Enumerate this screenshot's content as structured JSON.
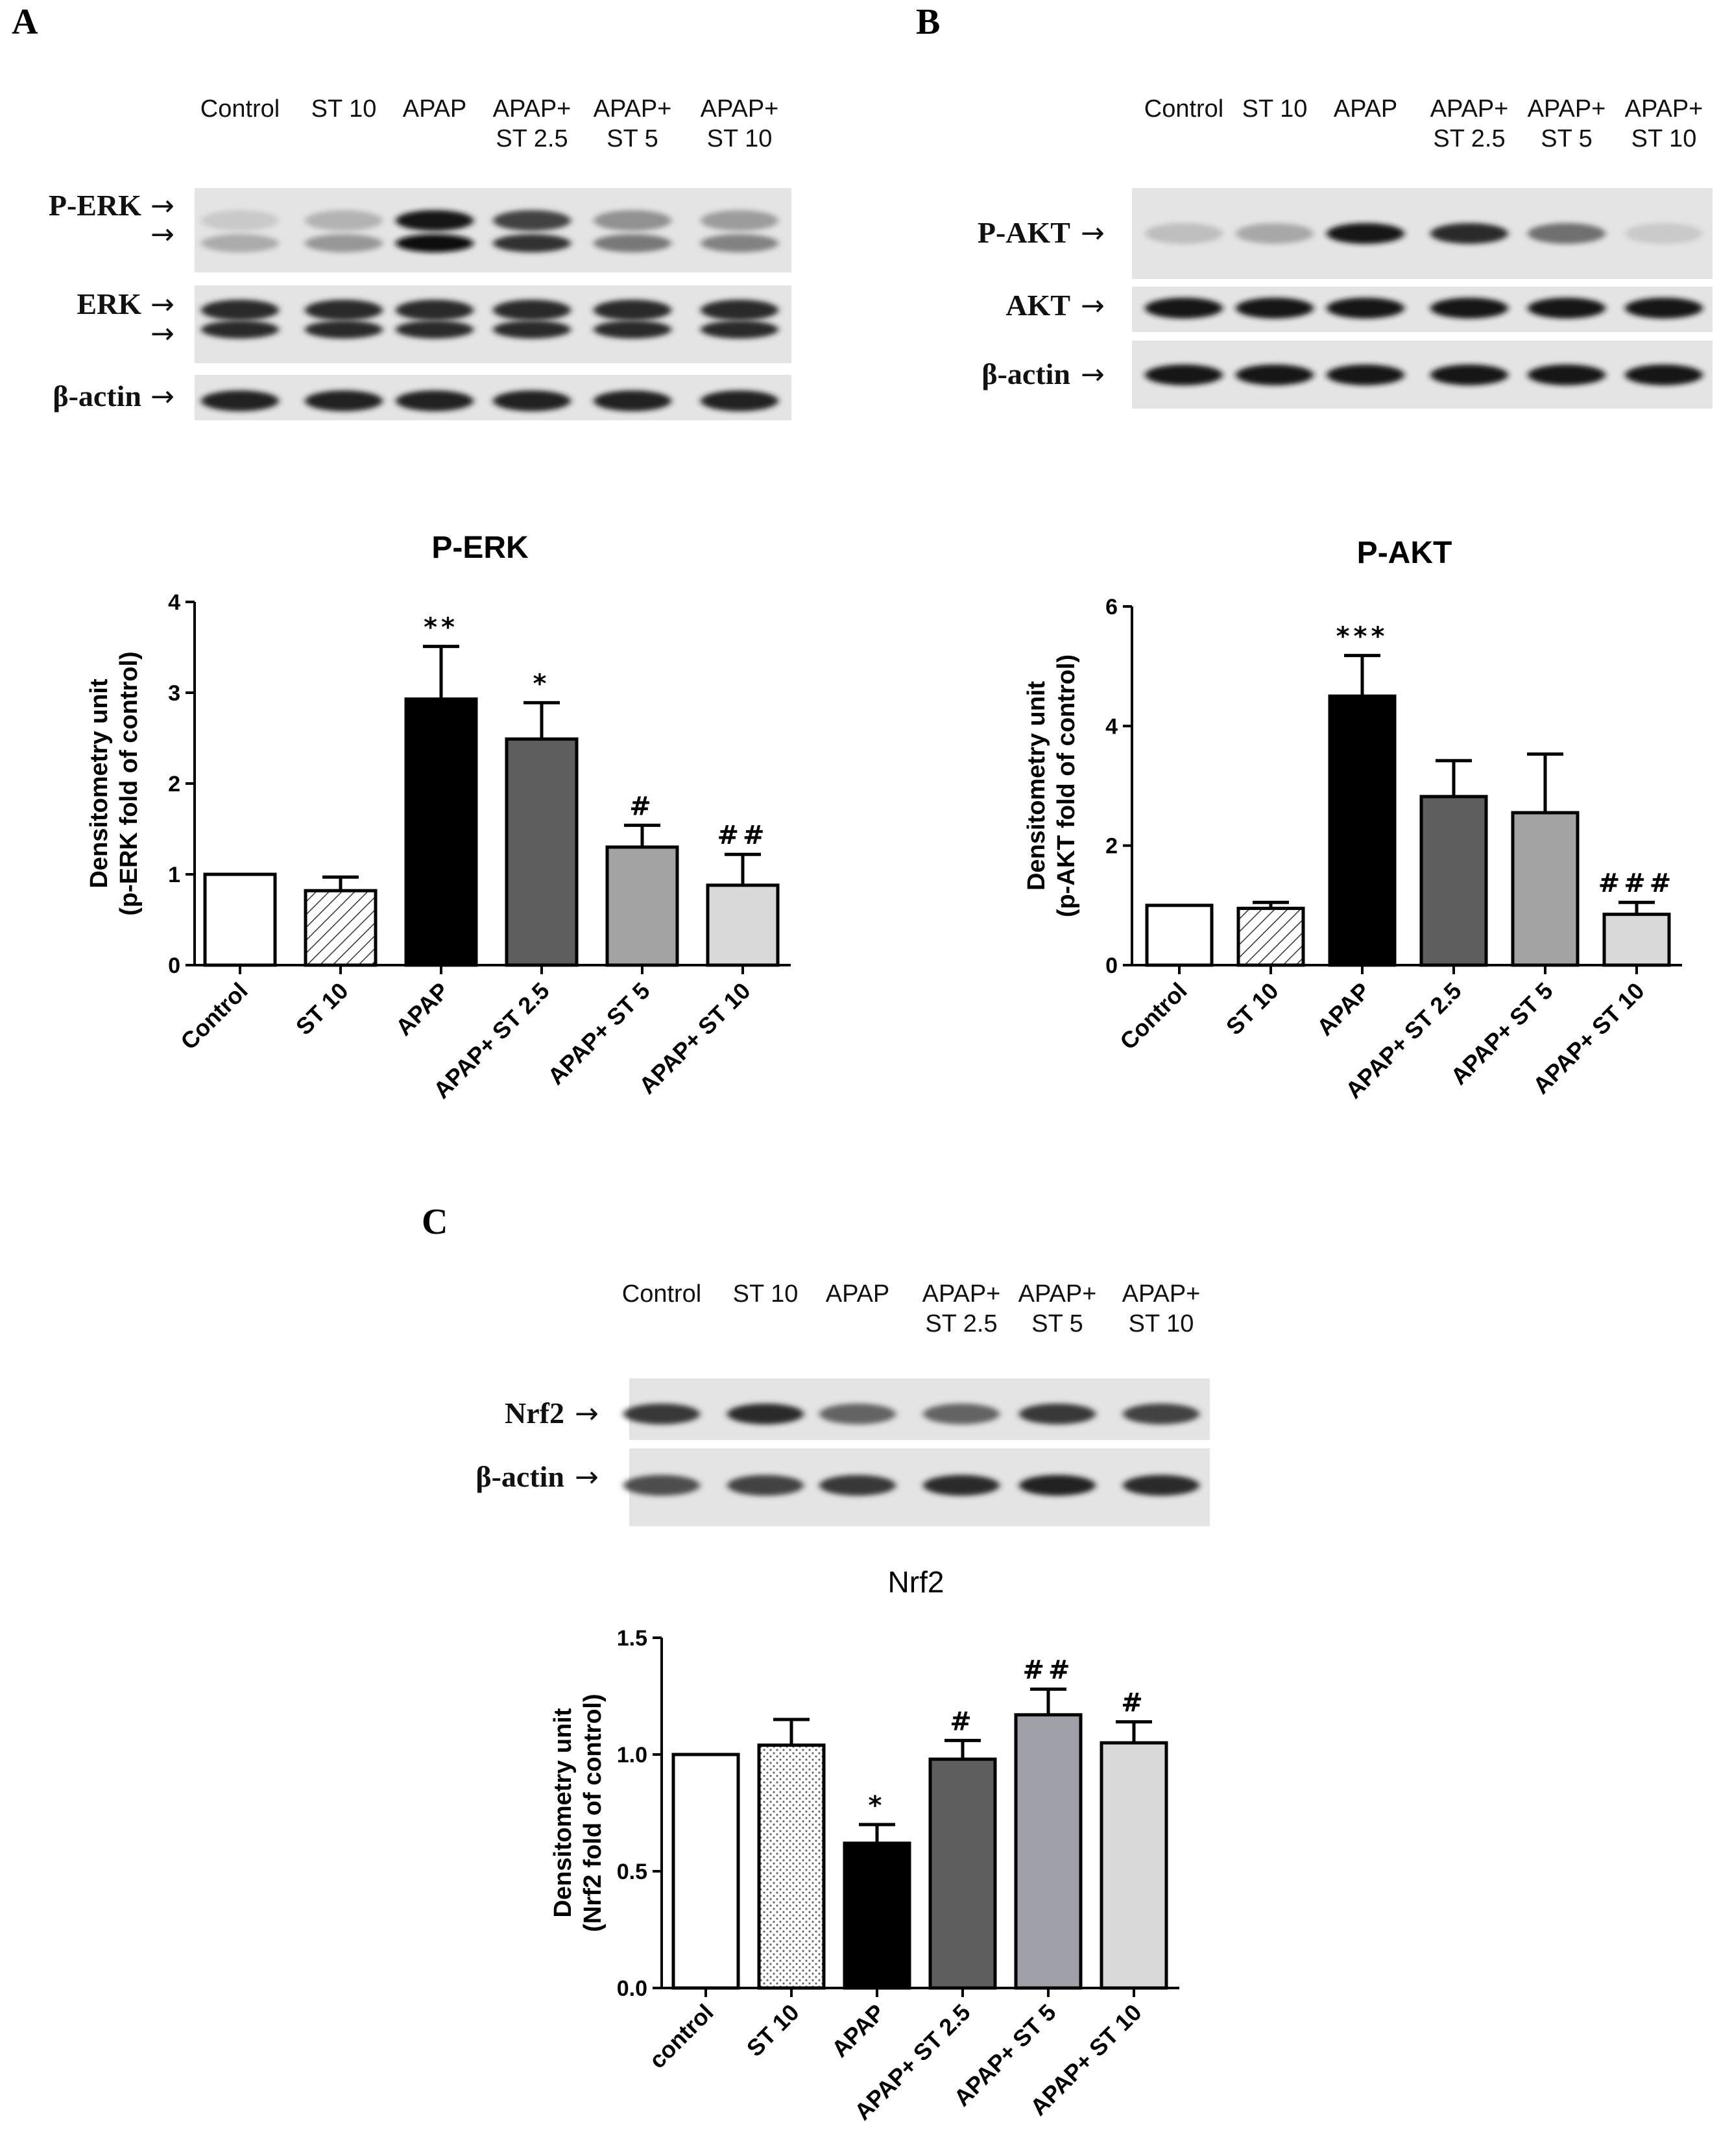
{
  "panels": {
    "a": {
      "letter": "A"
    },
    "b": {
      "letter": "B"
    },
    "c": {
      "letter": "C"
    }
  },
  "blots": {
    "a": {
      "lanes": [
        [
          "Control"
        ],
        [
          "ST 10"
        ],
        [
          "APAP"
        ],
        [
          "APAP+",
          "ST 2.5"
        ],
        [
          "APAP+",
          "ST 5"
        ],
        [
          "APAP+",
          "ST 10"
        ]
      ],
      "rows": [
        {
          "label": "P-ERK",
          "bands": [
            0.15,
            0.25,
            0.95,
            0.75,
            0.4,
            0.35
          ],
          "double": true
        },
        {
          "label": "ERK",
          "bands": [
            0.85,
            0.85,
            0.85,
            0.85,
            0.85,
            0.85
          ],
          "double": true
        },
        {
          "label": "β-actin",
          "bands": [
            0.9,
            0.9,
            0.9,
            0.9,
            0.9,
            0.9
          ],
          "double": false
        }
      ]
    },
    "b": {
      "lanes": [
        [
          "Control"
        ],
        [
          "ST 10"
        ],
        [
          "APAP"
        ],
        [
          "APAP+",
          "ST 2.5"
        ],
        [
          "APAP+",
          "ST 5"
        ],
        [
          "APAP+",
          "ST 10"
        ]
      ],
      "rows": [
        {
          "label": "P-AKT",
          "bands": [
            0.2,
            0.3,
            0.95,
            0.85,
            0.55,
            0.15
          ],
          "double": false
        },
        {
          "label": "AKT",
          "bands": [
            0.95,
            0.95,
            0.95,
            0.95,
            0.95,
            0.95
          ],
          "double": false
        },
        {
          "label": "β-actin",
          "bands": [
            0.95,
            0.95,
            0.95,
            0.95,
            0.95,
            0.95
          ],
          "double": false
        }
      ]
    },
    "c": {
      "lanes": [
        [
          "Control"
        ],
        [
          "ST 10"
        ],
        [
          "APAP"
        ],
        [
          "APAP+",
          "ST 2.5"
        ],
        [
          "APAP+",
          "ST 5"
        ],
        [
          "APAP+",
          "ST 10"
        ]
      ],
      "rows": [
        {
          "label": "Nrf2",
          "bands": [
            0.8,
            0.85,
            0.6,
            0.6,
            0.8,
            0.75
          ],
          "double": false
        },
        {
          "label": "β-actin",
          "bands": [
            0.7,
            0.75,
            0.8,
            0.85,
            0.9,
            0.85
          ],
          "double": false
        }
      ]
    }
  },
  "chart_data": [
    {
      "type": "bar",
      "title": "P-ERK",
      "ylabel": [
        "Densitometry unit",
        "(p-ERK fold of control)"
      ],
      "categories": [
        "Control",
        "ST 10",
        "APAP",
        "APAP+ ST 2.5",
        "APAP+ ST 5",
        "APAP+ ST 10"
      ],
      "values": [
        1.0,
        0.82,
        2.93,
        2.49,
        1.3,
        0.88
      ],
      "errors": [
        0,
        0.15,
        0.58,
        0.4,
        0.24,
        0.34
      ],
      "annotations": [
        "",
        "",
        "**",
        "*",
        "#",
        "##"
      ],
      "ylim": [
        0,
        4
      ],
      "yticks": [
        "0",
        "1",
        "2",
        "3",
        "4"
      ],
      "fills": [
        "#ffffff",
        "hatch",
        "#000000",
        "#5e5e5e",
        "#a3a3a3",
        "#d9d9d9"
      ]
    },
    {
      "type": "bar",
      "title": "P-AKT",
      "ylabel": [
        "Densitometry unit",
        "(p-AKT fold of control)"
      ],
      "categories": [
        "Control",
        "ST 10",
        "APAP",
        "APAP+ ST 2.5",
        "APAP+ ST 5",
        "APAP+ ST 10"
      ],
      "values": [
        1.0,
        0.95,
        4.5,
        2.82,
        2.55,
        0.85
      ],
      "errors": [
        0,
        0.1,
        0.68,
        0.6,
        0.98,
        0.2
      ],
      "annotations": [
        "",
        "",
        "***",
        "",
        "",
        "###"
      ],
      "ylim": [
        0,
        6
      ],
      "yticks": [
        "0",
        "2",
        "4",
        "6"
      ],
      "fills": [
        "#ffffff",
        "hatch",
        "#000000",
        "#5e5e5e",
        "#a3a3a3",
        "#d9d9d9"
      ]
    },
    {
      "type": "bar",
      "title": "Nrf2",
      "ylabel": [
        "Densitometry unit",
        "(Nrf2 fold of control)"
      ],
      "categories": [
        "control",
        "ST 10",
        "APAP",
        "APAP+ ST 2.5",
        "APAP+ ST 5",
        "APAP+ ST 10"
      ],
      "values": [
        1.0,
        1.04,
        0.62,
        0.98,
        1.17,
        1.05
      ],
      "errors": [
        0,
        0.11,
        0.08,
        0.08,
        0.11,
        0.09
      ],
      "annotations": [
        "",
        "",
        "*",
        "#",
        "##",
        "#"
      ],
      "ylim": [
        0,
        1.5
      ],
      "yticks": [
        "0.0",
        "0.5",
        "1.0",
        "1.5"
      ],
      "fills": [
        "#ffffff",
        "dots",
        "#000000",
        "#5e5e5e",
        "#a0a0a8",
        "#d9d9d9"
      ]
    }
  ]
}
